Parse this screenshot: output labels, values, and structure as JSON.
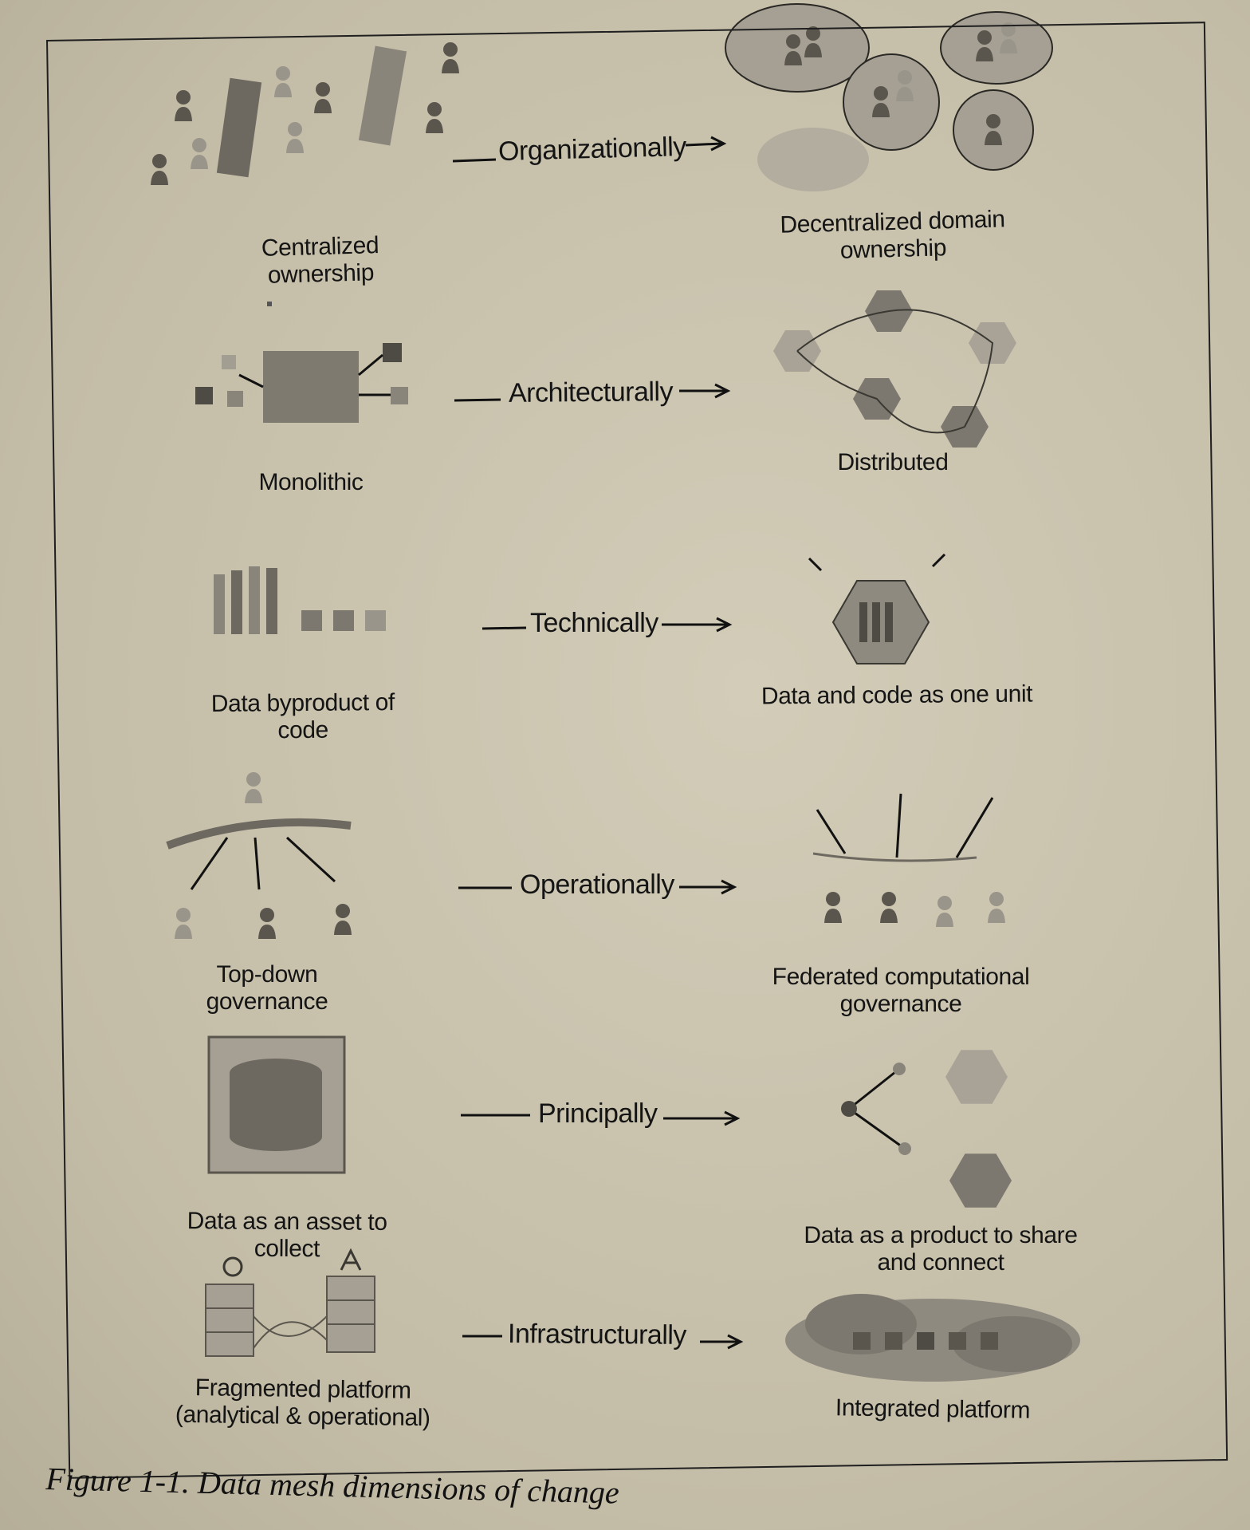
{
  "figure_caption": "Figure 1-1. Data mesh dimensions of change",
  "rows": [
    {
      "dimension": "Organizationally",
      "from": "Centralized ownership",
      "to": "Decentralized domain ownership"
    },
    {
      "dimension": "Architecturally",
      "from": "Monolithic",
      "to": "Distributed"
    },
    {
      "dimension": "Technically",
      "from": "Data byproduct of code",
      "to": "Data and code as one unit"
    },
    {
      "dimension": "Operationally",
      "from": "Top-down governance",
      "to_line1": "Federated computational",
      "to_line2": "governance"
    },
    {
      "dimension": "Principally",
      "from": "Data as an asset to collect",
      "to_line1": "Data as a product to share",
      "to_line2": "and connect"
    },
    {
      "dimension": "Infrastructurally",
      "from_line1": "Fragmented platform",
      "from_line2": "(analytical & operational)",
      "to": "Integrated platform"
    }
  ],
  "colors": {
    "ink": "#141414",
    "sketch_fill": "#8f8a80",
    "sketch_dark": "#4a4740",
    "background": "#c8c1ab"
  }
}
